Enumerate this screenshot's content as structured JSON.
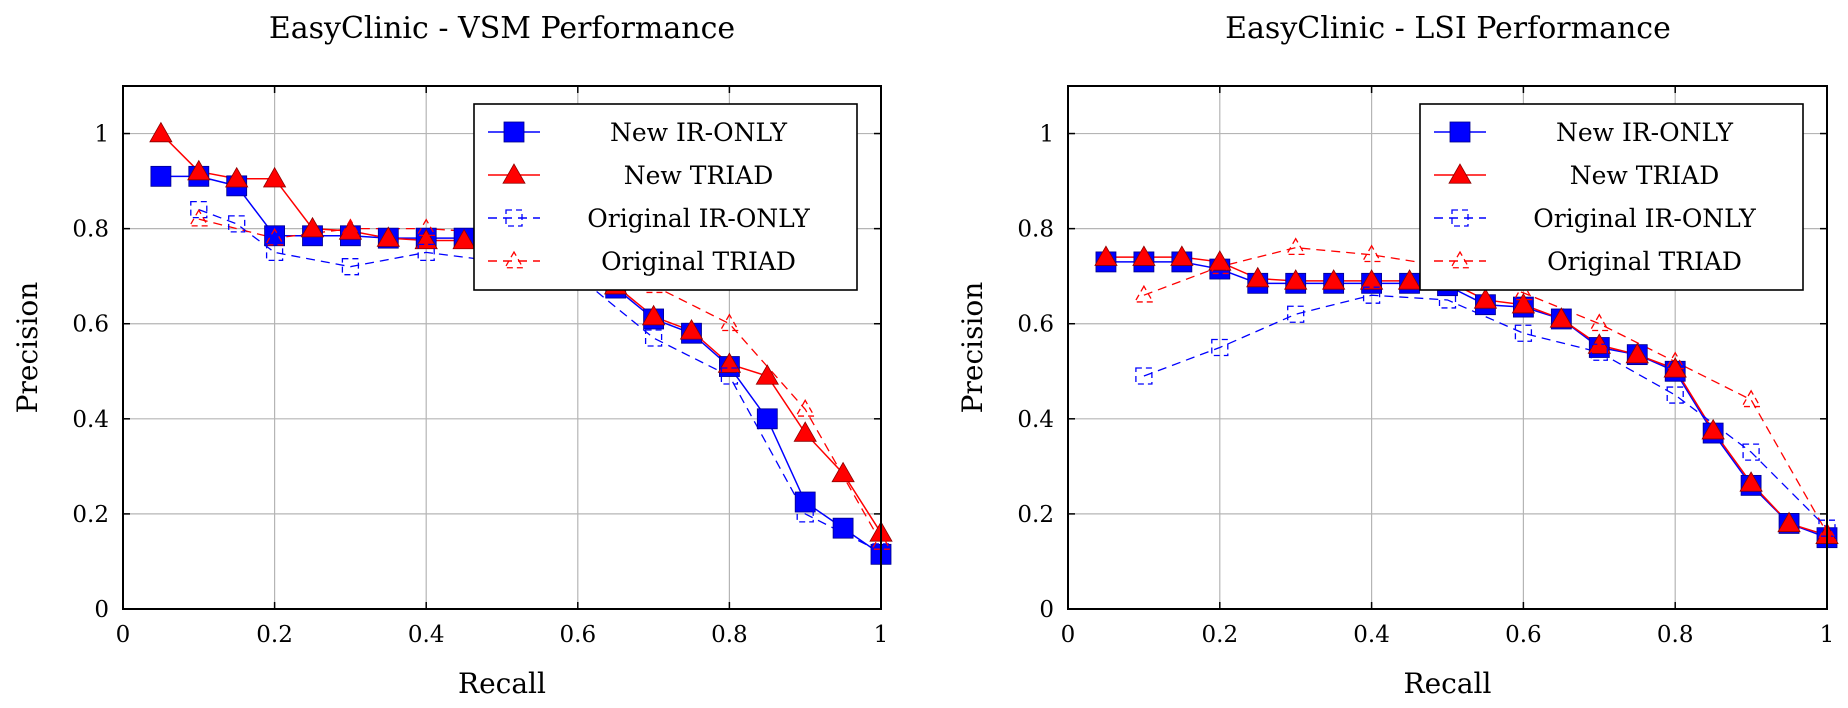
{
  "chart_data": [
    {
      "type": "line",
      "title": "EasyClinic - VSM Performance",
      "xlabel": "Recall",
      "ylabel": "Precision",
      "xlim": [
        0,
        1
      ],
      "ylim": [
        0,
        1.1
      ],
      "xticks": [
        0,
        0.2,
        0.4,
        0.6,
        0.8,
        1
      ],
      "xtick_labels": [
        "0",
        "0.2",
        "0.4",
        "0.6",
        "0.8",
        "1"
      ],
      "yticks": [
        0,
        0.2,
        0.4,
        0.6,
        0.8,
        1
      ],
      "ytick_labels": [
        "0",
        "0.2",
        "0.4",
        "0.6",
        "0.8",
        "1"
      ],
      "grid": true,
      "legend_position": "top-right",
      "series": [
        {
          "name": "New IR-ONLY",
          "color": "#0000ff",
          "marker": "square",
          "dash": "solid",
          "x": [
            0.05,
            0.1,
            0.15,
            0.2,
            0.25,
            0.3,
            0.35,
            0.4,
            0.45,
            0.5,
            0.55,
            0.6,
            0.65,
            0.7,
            0.75,
            0.8,
            0.85,
            0.9,
            0.95,
            1.0
          ],
          "y": [
            0.91,
            0.91,
            0.89,
            0.785,
            0.785,
            0.785,
            0.78,
            0.78,
            0.78,
            0.77,
            0.74,
            0.71,
            0.675,
            0.61,
            0.58,
            0.51,
            0.4,
            0.225,
            0.17,
            0.115
          ]
        },
        {
          "name": "New TRIAD",
          "color": "#ff0000",
          "marker": "triangle",
          "dash": "solid",
          "x": [
            0.05,
            0.1,
            0.15,
            0.2,
            0.25,
            0.3,
            0.35,
            0.4,
            0.45,
            0.5,
            0.55,
            0.6,
            0.65,
            0.7,
            0.75,
            0.8,
            0.85,
            0.9,
            0.95,
            1.0
          ],
          "y": [
            1.0,
            0.92,
            0.905,
            0.905,
            0.8,
            0.795,
            0.78,
            0.775,
            0.775,
            0.77,
            0.74,
            0.71,
            0.68,
            0.615,
            0.585,
            0.515,
            0.49,
            0.37,
            0.285,
            0.16
          ]
        },
        {
          "name": "Original IR-ONLY",
          "color": "#0000ff",
          "marker": "square-open",
          "dash": "dashed",
          "x": [
            0.1,
            0.15,
            0.2,
            0.3,
            0.4,
            0.5,
            0.6,
            0.7,
            0.8,
            0.9,
            1.0
          ],
          "y": [
            0.84,
            0.81,
            0.75,
            0.72,
            0.75,
            0.73,
            0.7,
            0.57,
            0.49,
            0.2,
            0.12
          ]
        },
        {
          "name": "Original TRIAD",
          "color": "#ff0000",
          "marker": "triangle-open",
          "dash": "dashed",
          "x": [
            0.1,
            0.2,
            0.3,
            0.4,
            0.5,
            0.6,
            0.7,
            0.8,
            0.9,
            1.0
          ],
          "y": [
            0.82,
            0.78,
            0.8,
            0.8,
            0.79,
            0.74,
            0.68,
            0.6,
            0.42,
            0.14
          ]
        }
      ]
    },
    {
      "type": "line",
      "title": "EasyClinic - LSI Performance",
      "xlabel": "Recall",
      "ylabel": "Precision",
      "xlim": [
        0,
        1
      ],
      "ylim": [
        0,
        1.1
      ],
      "xticks": [
        0,
        0.2,
        0.4,
        0.6,
        0.8,
        1
      ],
      "xtick_labels": [
        "0",
        "0.2",
        "0.4",
        "0.6",
        "0.8",
        "1"
      ],
      "yticks": [
        0,
        0.2,
        0.4,
        0.6,
        0.8,
        1
      ],
      "ytick_labels": [
        "0",
        "0.2",
        "0.4",
        "0.6",
        "0.8",
        "1"
      ],
      "grid": true,
      "legend_position": "top-right",
      "series": [
        {
          "name": "New IR-ONLY",
          "color": "#0000ff",
          "marker": "square",
          "dash": "solid",
          "x": [
            0.05,
            0.1,
            0.15,
            0.2,
            0.25,
            0.3,
            0.35,
            0.4,
            0.45,
            0.5,
            0.55,
            0.6,
            0.65,
            0.7,
            0.75,
            0.8,
            0.85,
            0.9,
            0.95,
            1.0
          ],
          "y": [
            0.73,
            0.73,
            0.73,
            0.715,
            0.685,
            0.685,
            0.685,
            0.685,
            0.685,
            0.68,
            0.64,
            0.635,
            0.61,
            0.55,
            0.535,
            0.5,
            0.37,
            0.26,
            0.18,
            0.15
          ]
        },
        {
          "name": "New TRIAD",
          "color": "#ff0000",
          "marker": "triangle",
          "dash": "solid",
          "x": [
            0.05,
            0.1,
            0.15,
            0.2,
            0.25,
            0.3,
            0.35,
            0.4,
            0.45,
            0.5,
            0.55,
            0.6,
            0.65,
            0.7,
            0.75,
            0.8,
            0.85,
            0.9,
            0.95,
            1.0
          ],
          "y": [
            0.74,
            0.74,
            0.74,
            0.73,
            0.695,
            0.69,
            0.69,
            0.69,
            0.69,
            0.69,
            0.65,
            0.64,
            0.61,
            0.555,
            0.535,
            0.505,
            0.375,
            0.265,
            0.18,
            0.155
          ]
        },
        {
          "name": "Original IR-ONLY",
          "color": "#0000ff",
          "marker": "square-open",
          "dash": "dashed",
          "x": [
            0.1,
            0.2,
            0.3,
            0.4,
            0.5,
            0.6,
            0.7,
            0.8,
            0.9,
            1.0
          ],
          "y": [
            0.49,
            0.55,
            0.62,
            0.66,
            0.65,
            0.58,
            0.54,
            0.45,
            0.33,
            0.17
          ]
        },
        {
          "name": "Original TRIAD",
          "color": "#ff0000",
          "marker": "triangle-open",
          "dash": "dashed",
          "x": [
            0.1,
            0.2,
            0.3,
            0.4,
            0.5,
            0.6,
            0.7,
            0.8,
            0.9,
            1.0
          ],
          "y": [
            0.66,
            0.72,
            0.76,
            0.745,
            0.72,
            0.665,
            0.6,
            0.52,
            0.44,
            0.16
          ]
        }
      ]
    }
  ]
}
